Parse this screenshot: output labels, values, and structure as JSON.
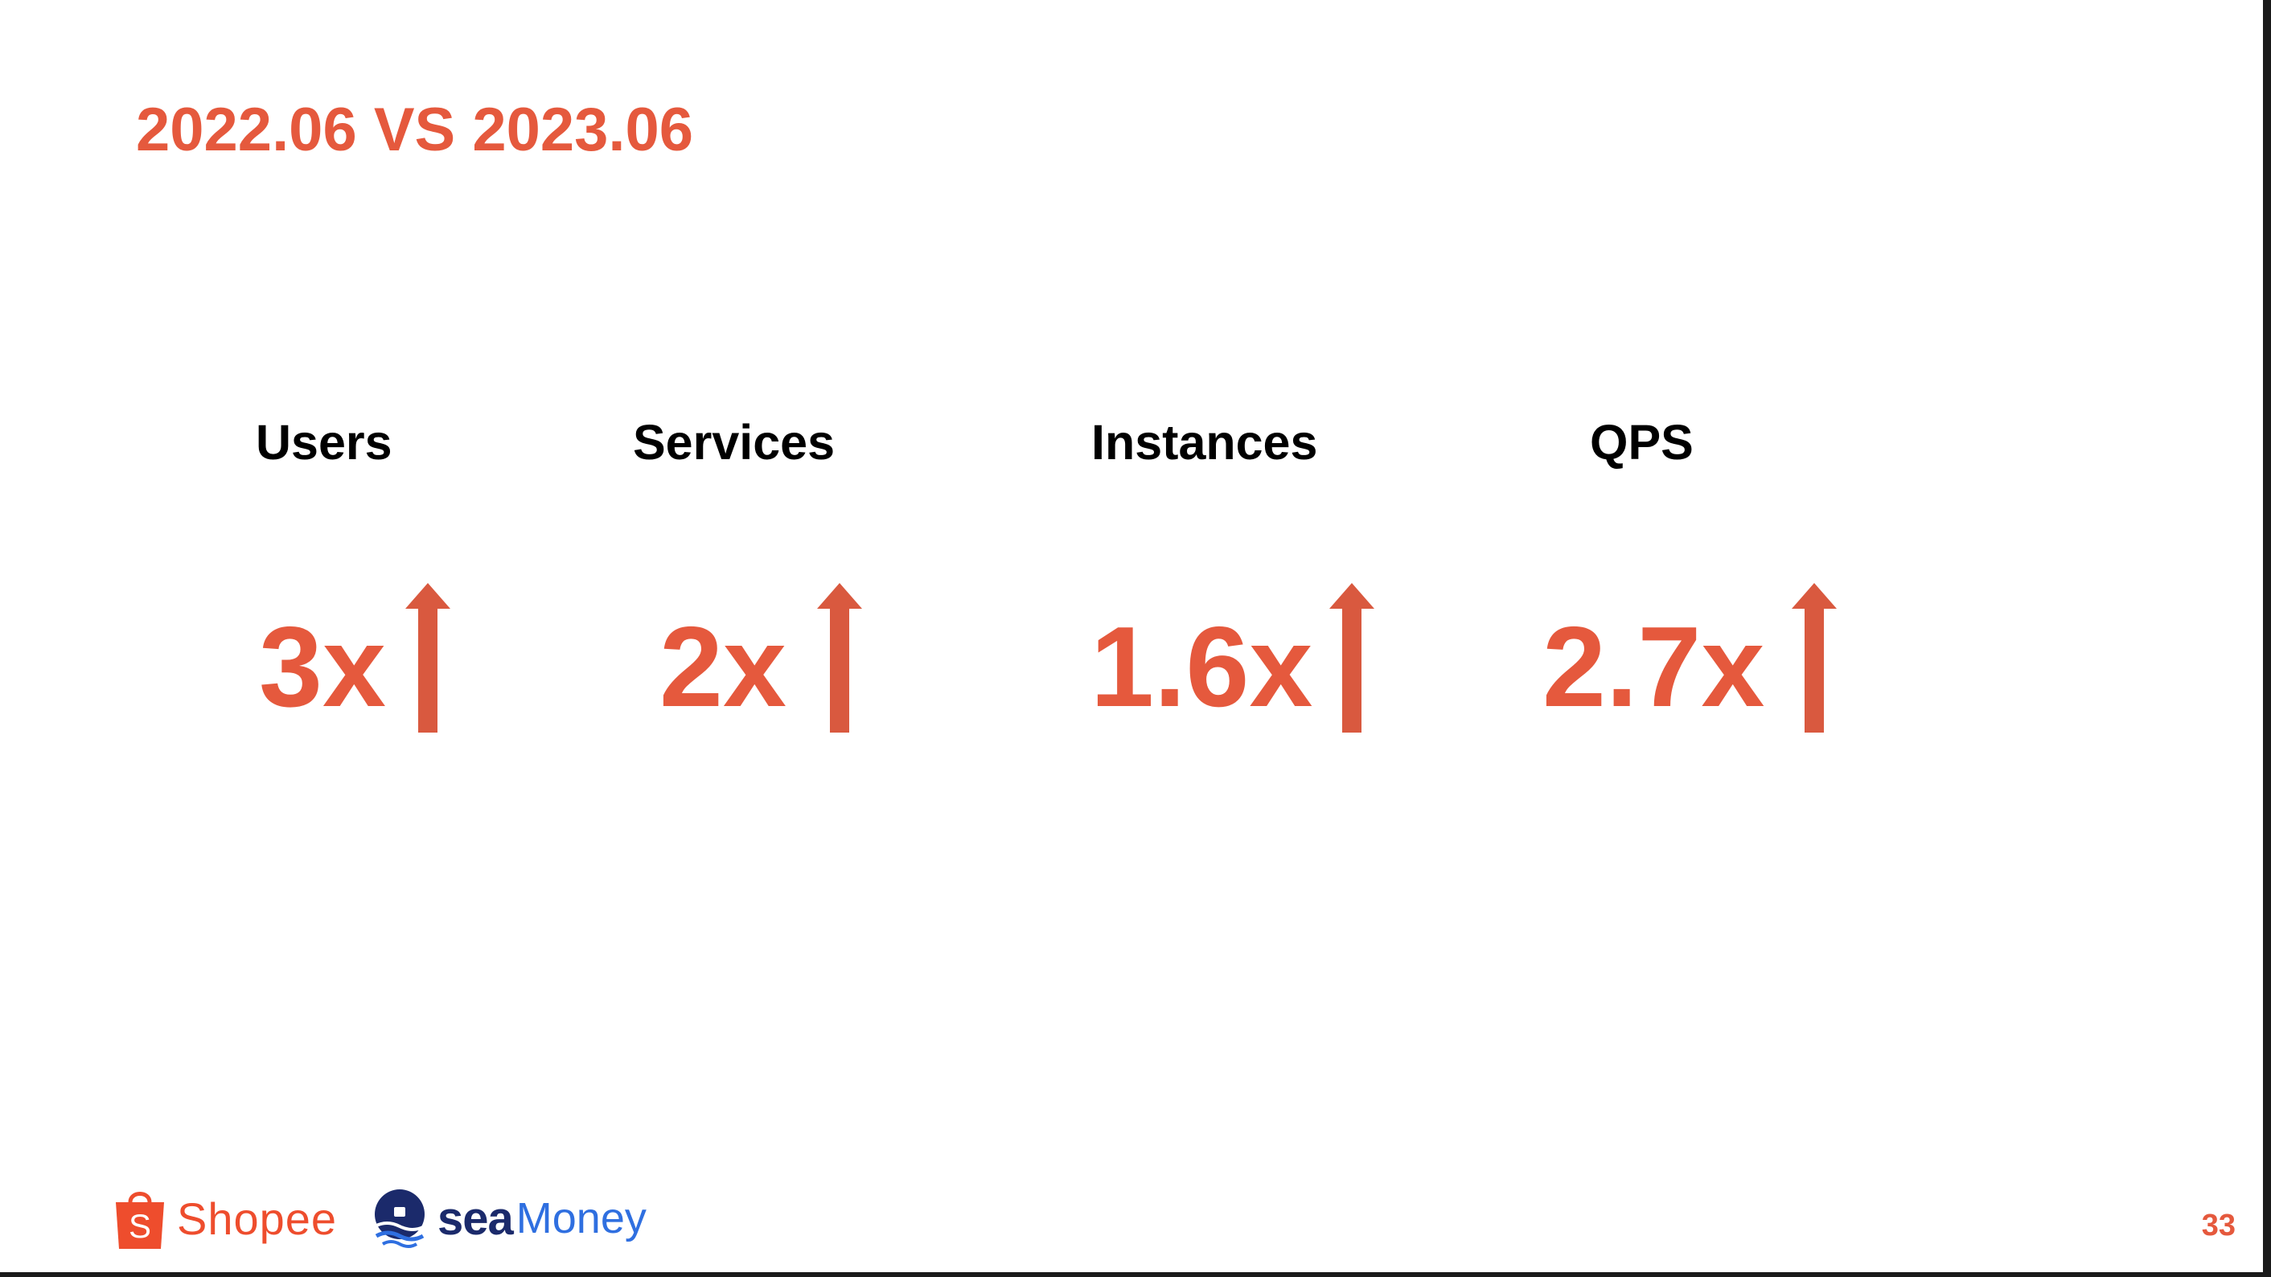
{
  "slide": {
    "title": "2022.06 VS 2023.06",
    "accent_color": "#e5593d",
    "metrics": [
      {
        "label": "Users",
        "value": "3x",
        "trend_icon": "up-arrow-icon"
      },
      {
        "label": "Services",
        "value": "2x",
        "trend_icon": "up-arrow-icon"
      },
      {
        "label": "Instances",
        "value": "1.6x",
        "trend_icon": "up-arrow-icon"
      },
      {
        "label": "QPS",
        "value": "2.7x",
        "trend_icon": "up-arrow-icon"
      }
    ],
    "footer": {
      "shopee_logo_text": "Shopee",
      "seamoney_logo_sea": "sea",
      "seamoney_logo_money": "Money",
      "page_number": "33"
    }
  }
}
